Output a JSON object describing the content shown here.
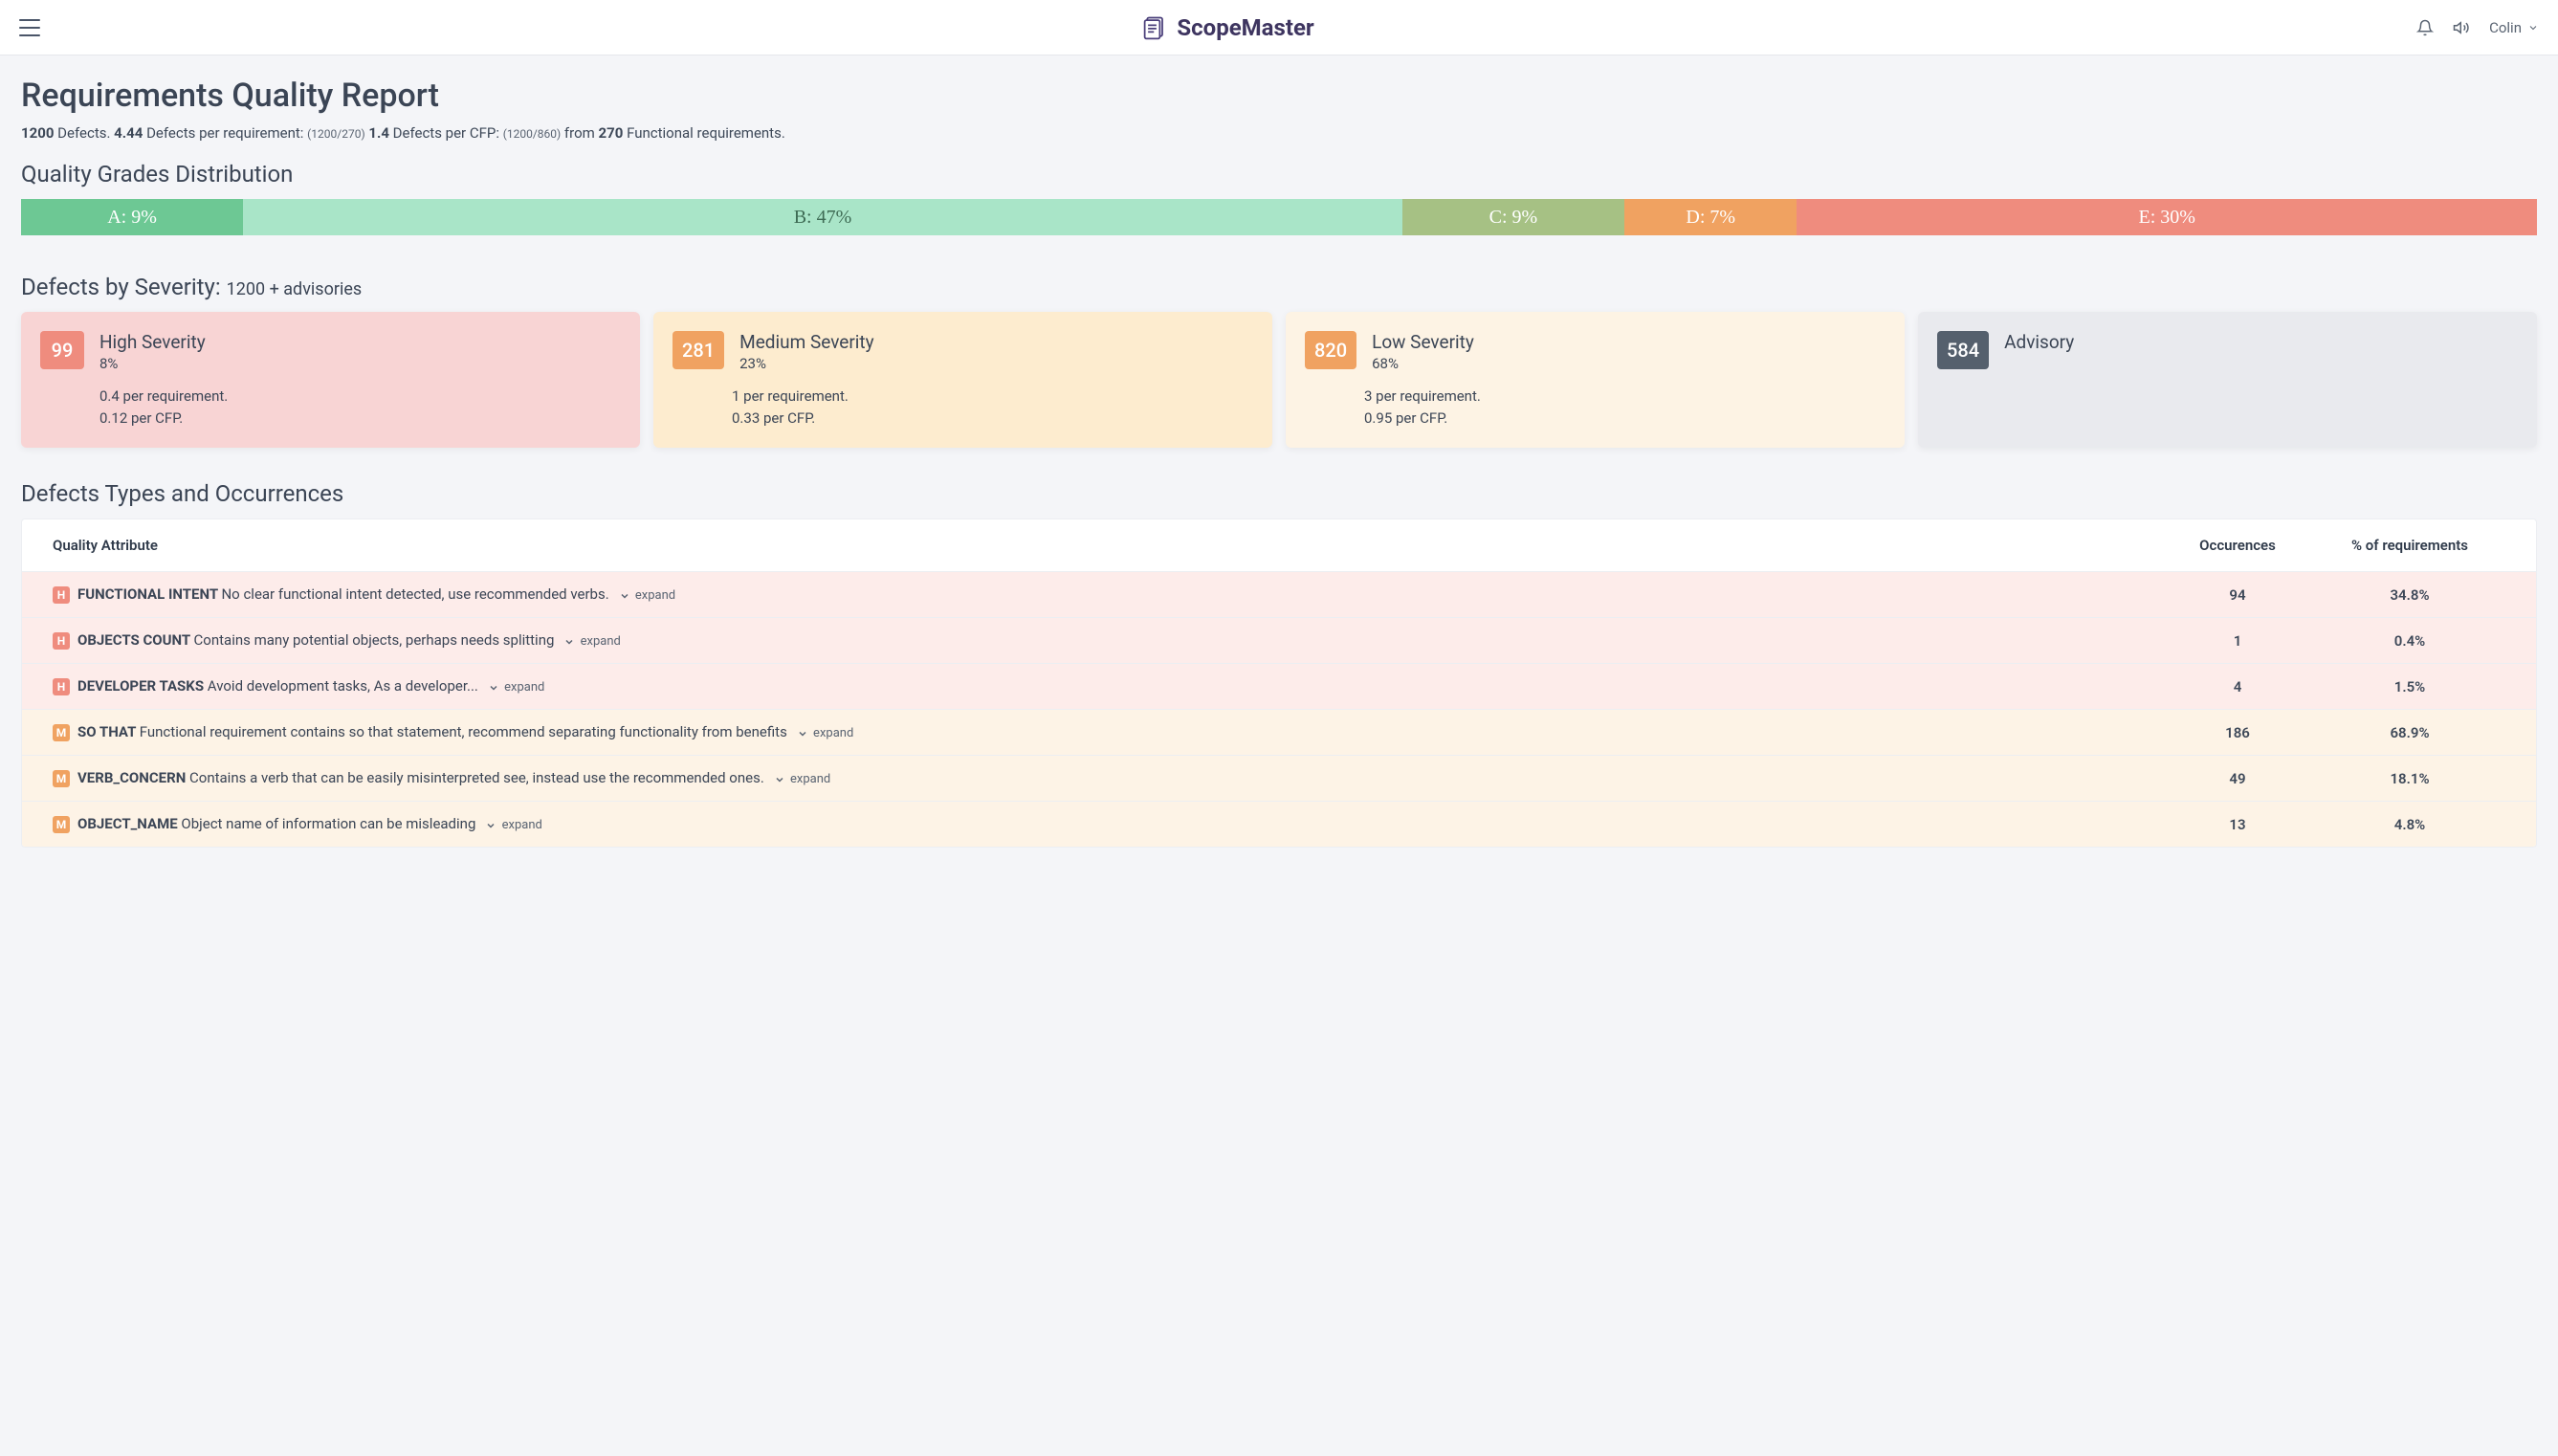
{
  "header": {
    "app_name": "ScopeMaster",
    "user_name": "Colin"
  },
  "page": {
    "title": "Requirements Quality Report",
    "summary": {
      "defects_total": "1200",
      "defects_label": "Defects.",
      "per_req_value": "4.44",
      "per_req_label": "Defects per requirement:",
      "per_req_ratio": "(1200/270)",
      "per_cfp_value": "1.4",
      "per_cfp_label": "Defects per CFP:",
      "per_cfp_ratio": "(1200/860)",
      "from_label": "from",
      "func_count": "270",
      "func_label": "Functional requirements."
    }
  },
  "grades": {
    "title": "Quality Grades Distribution",
    "segments": [
      {
        "label": "A: 9%",
        "pct": 9,
        "bg": "#6dc894",
        "fg": "#ffffff"
      },
      {
        "label": "B: 47%",
        "pct": 47,
        "bg": "#a9e5c8",
        "fg": "#3e6b54"
      },
      {
        "label": "C: 9%",
        "pct": 9,
        "bg": "#a6c184",
        "fg": "#ffffff"
      },
      {
        "label": "D: 7%",
        "pct": 7,
        "bg": "#f0a261",
        "fg": "#ffffff"
      },
      {
        "label": "E: 30%",
        "pct": 30,
        "bg": "#ef8c7e",
        "fg": "#ffffff"
      }
    ]
  },
  "severity": {
    "title": "Defects by Severity:",
    "subtitle": "1200 + advisories",
    "cards": [
      {
        "count": "99",
        "name": "High Severity",
        "pct": "8%",
        "line1": "0.4 per requirement.",
        "line2": "0.12 per CFP.",
        "card_bg": "#f8d4d4",
        "count_bg": "#ef8c7e"
      },
      {
        "count": "281",
        "name": "Medium Severity",
        "pct": "23%",
        "line1": "1 per requirement.",
        "line2": "0.33 per CFP.",
        "card_bg": "#fdeccf",
        "count_bg": "#f0a261"
      },
      {
        "count": "820",
        "name": "Low Severity",
        "pct": "68%",
        "line1": "3 per requirement.",
        "line2": "0.95 per CFP.",
        "card_bg": "#fdf3e4",
        "count_bg": "#f0a261"
      },
      {
        "count": "584",
        "name": "Advisory",
        "pct": "",
        "line1": "",
        "line2": "",
        "card_bg": "#e9eaee",
        "count_bg": "#55606d"
      }
    ]
  },
  "defect_types": {
    "title": "Defects Types and Occurrences",
    "columns": {
      "c1": "Quality Attribute",
      "c2": "Occurences",
      "c3": "% of requirements"
    },
    "expand_label": "expand",
    "rows": [
      {
        "badge": "H",
        "badge_bg": "#ef8c7e",
        "row_bg": "#fdecea",
        "name": "FUNCTIONAL INTENT",
        "desc": "No clear functional intent detected, use recommended verbs.",
        "occ": "94",
        "pct": "34.8%"
      },
      {
        "badge": "H",
        "badge_bg": "#ef8c7e",
        "row_bg": "#fdecea",
        "name": "OBJECTS COUNT",
        "desc": "Contains many potential objects, perhaps needs splitting",
        "occ": "1",
        "pct": "0.4%"
      },
      {
        "badge": "H",
        "badge_bg": "#ef8c7e",
        "row_bg": "#fdecea",
        "name": "DEVELOPER TASKS",
        "desc": "Avoid development tasks, As a developer...",
        "occ": "4",
        "pct": "1.5%"
      },
      {
        "badge": "M",
        "badge_bg": "#f0a261",
        "row_bg": "#fdf3e6",
        "name": "SO THAT",
        "desc": "Functional requirement contains so that statement, recommend separating functionality from benefits",
        "occ": "186",
        "pct": "68.9%"
      },
      {
        "badge": "M",
        "badge_bg": "#f0a261",
        "row_bg": "#fdf3e6",
        "name": "VERB_CONCERN",
        "desc": "Contains a verb that can be easily misinterpreted see, instead use the recommended ones.",
        "occ": "49",
        "pct": "18.1%"
      },
      {
        "badge": "M",
        "badge_bg": "#f0a261",
        "row_bg": "#fdf3e6",
        "name": "OBJECT_NAME",
        "desc": "Object name of information can be misleading",
        "occ": "13",
        "pct": "4.8%"
      }
    ]
  }
}
